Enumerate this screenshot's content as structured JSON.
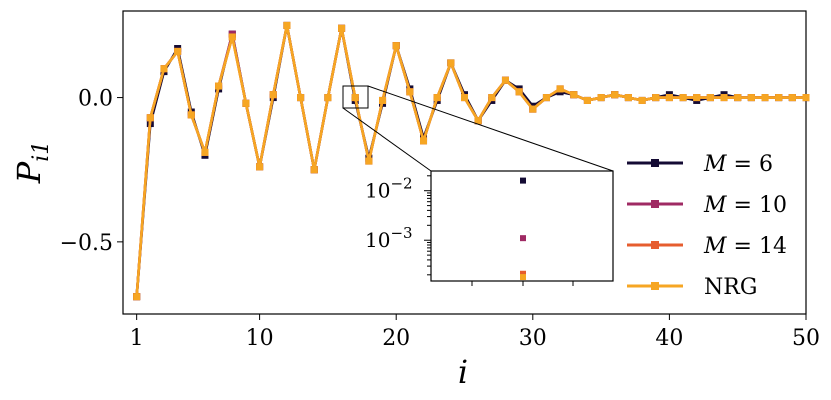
{
  "chart_data": {
    "type": "line",
    "xlabel": "i",
    "ylabel_main": "P",
    "ylabel_sub": "i1",
    "xlim": [
      0,
      50
    ],
    "ylim": [
      -0.75,
      0.3
    ],
    "xticks": [
      {
        "value": 1,
        "label": "1"
      },
      {
        "value": 10,
        "label": "10"
      },
      {
        "value": 20,
        "label": "20"
      },
      {
        "value": 30,
        "label": "30"
      },
      {
        "value": 40,
        "label": "40"
      },
      {
        "value": 50,
        "label": "50"
      }
    ],
    "yticks": [
      {
        "value": 0.0,
        "label": "0.0"
      },
      {
        "value": -0.5,
        "label": "−0.5"
      }
    ],
    "legend_position": "right",
    "x": [
      1,
      2,
      3,
      4,
      5,
      6,
      7,
      8,
      9,
      10,
      11,
      12,
      13,
      14,
      15,
      16,
      17,
      18,
      19,
      20,
      21,
      22,
      23,
      24,
      25,
      26,
      27,
      28,
      29,
      30,
      31,
      32,
      33,
      34,
      35,
      36,
      37,
      38,
      39,
      40,
      41,
      42,
      43,
      44,
      45,
      46,
      47,
      48,
      49,
      50
    ],
    "series": [
      {
        "name": "M = 6",
        "legend_prefix": "M",
        "legend_value": "6",
        "color": "#140b34",
        "values": [
          -0.69,
          -0.09,
          0.09,
          0.17,
          -0.05,
          -0.2,
          0.03,
          0.22,
          -0.02,
          -0.24,
          0.0,
          0.25,
          0.0,
          -0.25,
          0.0,
          0.24,
          -0.01,
          -0.21,
          -0.02,
          0.18,
          0.03,
          -0.14,
          -0.01,
          0.12,
          0.01,
          -0.08,
          -0.01,
          0.06,
          0.03,
          -0.03,
          0.0,
          0.02,
          0.01,
          -0.01,
          0.0,
          0.01,
          0.0,
          -0.01,
          0.0,
          0.01,
          0.0,
          -0.01,
          0.0,
          0.01,
          0.0,
          0.0,
          0.0,
          0.0,
          0.0,
          0.0
        ]
      },
      {
        "name": "M = 10",
        "legend_prefix": "M",
        "legend_value": "10",
        "color": "#9f2a63",
        "values": [
          -0.69,
          -0.07,
          0.1,
          0.16,
          -0.06,
          -0.19,
          0.04,
          0.22,
          -0.02,
          -0.24,
          0.01,
          0.25,
          0.0,
          -0.25,
          0.0,
          0.24,
          0.0,
          -0.22,
          -0.01,
          0.18,
          0.02,
          -0.15,
          0.0,
          0.12,
          0.0,
          -0.08,
          0.0,
          0.06,
          0.02,
          -0.04,
          0.0,
          0.03,
          0.01,
          -0.01,
          0.0,
          0.01,
          0.0,
          -0.01,
          0.0,
          0.0,
          0.0,
          0.0,
          0.0,
          0.0,
          0.0,
          0.0,
          0.0,
          0.0,
          0.0,
          0.0
        ]
      },
      {
        "name": "M = 14",
        "legend_prefix": "M",
        "legend_value": "14",
        "color": "#e65d2f",
        "values": [
          -0.69,
          -0.07,
          0.1,
          0.16,
          -0.06,
          -0.19,
          0.04,
          0.21,
          -0.02,
          -0.24,
          0.01,
          0.25,
          0.0,
          -0.25,
          0.0,
          0.24,
          0.0,
          -0.22,
          -0.01,
          0.18,
          0.02,
          -0.15,
          0.0,
          0.12,
          0.0,
          -0.08,
          0.0,
          0.06,
          0.02,
          -0.04,
          0.0,
          0.03,
          0.01,
          -0.01,
          0.0,
          0.01,
          0.0,
          -0.01,
          0.0,
          0.0,
          0.0,
          0.0,
          0.0,
          0.0,
          0.0,
          0.0,
          0.0,
          0.0,
          0.0,
          0.0
        ]
      },
      {
        "name": "NRG",
        "legend_prefix": "NRG",
        "legend_value": "",
        "color": "#f6a623",
        "values": [
          -0.69,
          -0.07,
          0.1,
          0.16,
          -0.06,
          -0.19,
          0.04,
          0.21,
          -0.02,
          -0.24,
          0.01,
          0.25,
          0.0,
          -0.25,
          0.0,
          0.24,
          0.0,
          -0.22,
          -0.01,
          0.18,
          0.02,
          -0.15,
          0.0,
          0.12,
          0.0,
          -0.08,
          0.0,
          0.06,
          0.02,
          -0.04,
          0.0,
          0.03,
          0.01,
          -0.01,
          0.0,
          0.01,
          0.0,
          -0.01,
          0.0,
          0.0,
          0.0,
          0.0,
          0.0,
          0.0,
          0.0,
          0.0,
          0.0,
          0.0,
          0.0,
          0.0
        ]
      }
    ],
    "inset": {
      "yscale": "log",
      "ylim": [
        0.00015,
        0.025
      ],
      "yticks": [
        {
          "value": 0.01,
          "base": "10",
          "exp": "−2"
        },
        {
          "value": 0.001,
          "base": "10",
          "exp": "−3"
        }
      ],
      "points": [
        {
          "series": "M = 6",
          "y": 0.016
        },
        {
          "series": "M = 10",
          "y": 0.0011
        },
        {
          "series": "M = 14",
          "y": 0.00021
        },
        {
          "series": "NRG",
          "y": 0.00018
        }
      ]
    }
  }
}
